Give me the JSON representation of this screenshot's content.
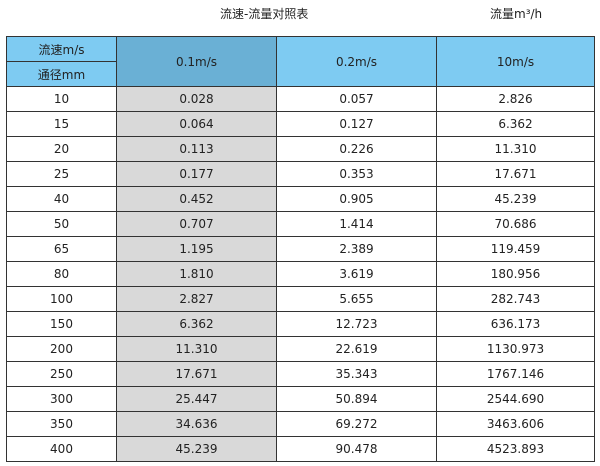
{
  "title": "流速-流量对照表",
  "unit_label": "流量m³/h",
  "header": {
    "velocity_label": "流速m/s",
    "diameter_label": "通径mm",
    "columns": [
      "0.1m/s",
      "0.2m/s",
      "10m/s"
    ]
  },
  "colors": {
    "header": "#7ecbf2",
    "header_highlight": "#6ab0d5",
    "column_highlight": "#d9d9d9"
  },
  "rows": [
    [
      "10",
      "0.028",
      "0.057",
      "2.826"
    ],
    [
      "15",
      "0.064",
      "0.127",
      "6.362"
    ],
    [
      "20",
      "0.113",
      "0.226",
      "11.310"
    ],
    [
      "25",
      "0.177",
      "0.353",
      "17.671"
    ],
    [
      "40",
      "0.452",
      "0.905",
      "45.239"
    ],
    [
      "50",
      "0.707",
      "1.414",
      "70.686"
    ],
    [
      "65",
      "1.195",
      "2.389",
      "119.459"
    ],
    [
      "80",
      "1.810",
      "3.619",
      "180.956"
    ],
    [
      "100",
      "2.827",
      "5.655",
      "282.743"
    ],
    [
      "150",
      "6.362",
      "12.723",
      "636.173"
    ],
    [
      "200",
      "11.310",
      "22.619",
      "1130.973"
    ],
    [
      "250",
      "17.671",
      "35.343",
      "1767.146"
    ],
    [
      "300",
      "25.447",
      "50.894",
      "2544.690"
    ],
    [
      "350",
      "34.636",
      "69.272",
      "3463.606"
    ],
    [
      "400",
      "45.239",
      "90.478",
      "4523.893"
    ]
  ]
}
